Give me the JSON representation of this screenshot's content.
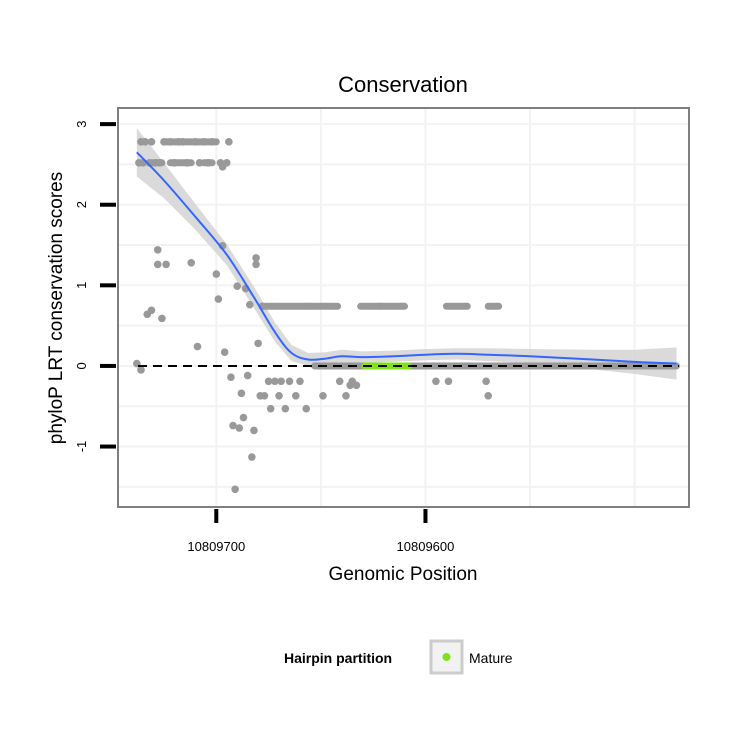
{
  "chart_data": {
    "type": "scatter",
    "title": "Conservation",
    "xlabel": "Genomic Position",
    "ylabel": "phyloP LRT conservation scores",
    "x_reversed": true,
    "xlim": [
      10809747,
      10809474
    ],
    "ylim": [
      -1.75,
      3.2
    ],
    "x_ticks": [
      10809700,
      10809600
    ],
    "x_tick_labels": [
      "10809700",
      "10809600"
    ],
    "y_ticks": [
      -1,
      0,
      1,
      2,
      3
    ],
    "y_tick_labels": [
      "-1",
      "0",
      "1",
      "2",
      "3"
    ],
    "reference_line": {
      "y": 0,
      "style": "dashed"
    },
    "colors": {
      "points": "#999999",
      "mature": "#7FE318",
      "smooth_line": "#3366FF",
      "ribbon": "#D3D3D3",
      "panel_border": "#7F7F7F",
      "grid": "#F2F2F2"
    },
    "series": [
      {
        "name": "phyloP scores",
        "points": [
          {
            "x": 10809738,
            "y": 0.03
          },
          {
            "x": 10809737,
            "y": 2.52
          },
          {
            "x": 10809736,
            "y": 2.78
          },
          {
            "x": 10809736,
            "y": -0.05
          },
          {
            "x": 10809735,
            "y": 2.52
          },
          {
            "x": 10809734,
            "y": 2.78
          },
          {
            "x": 10809733,
            "y": 0.64
          },
          {
            "x": 10809732,
            "y": 2.52
          },
          {
            "x": 10809731,
            "y": 2.78
          },
          {
            "x": 10809731,
            "y": 0.69
          },
          {
            "x": 10809729,
            "y": 2.52
          },
          {
            "x": 10809728,
            "y": 1.26
          },
          {
            "x": 10809728,
            "y": 1.44
          },
          {
            "x": 10809727,
            "y": 2.52
          },
          {
            "x": 10809726,
            "y": 0.59
          },
          {
            "x": 10809725,
            "y": 2.78
          },
          {
            "x": 10809724,
            "y": 1.26
          },
          {
            "x": 10809722,
            "y": 2.78
          },
          {
            "x": 10809720,
            "y": 2.52
          },
          {
            "x": 10809718,
            "y": 2.78
          },
          {
            "x": 10809716,
            "y": 2.78
          },
          {
            "x": 10809714,
            "y": 2.52
          },
          {
            "x": 10809712,
            "y": 1.28
          },
          {
            "x": 10809710,
            "y": 2.78
          },
          {
            "x": 10809709,
            "y": 0.24
          },
          {
            "x": 10809708,
            "y": 2.52
          },
          {
            "x": 10809706,
            "y": 2.78
          },
          {
            "x": 10809704,
            "y": 2.52
          },
          {
            "x": 10809702,
            "y": 2.78
          },
          {
            "x": 10809700,
            "y": 1.14
          },
          {
            "x": 10809699,
            "y": 0.83
          },
          {
            "x": 10809698,
            "y": 2.52
          },
          {
            "x": 10809697,
            "y": 2.47
          },
          {
            "x": 10809697,
            "y": 1.49
          },
          {
            "x": 10809696,
            "y": 0.17
          },
          {
            "x": 10809695,
            "y": 2.52
          },
          {
            "x": 10809694,
            "y": 2.78
          },
          {
            "x": 10809693,
            "y": -0.14
          },
          {
            "x": 10809692,
            "y": -0.74
          },
          {
            "x": 10809691,
            "y": -1.53
          },
          {
            "x": 10809690,
            "y": 0.99
          },
          {
            "x": 10809689,
            "y": -0.77
          },
          {
            "x": 10809688,
            "y": -0.34
          },
          {
            "x": 10809687,
            "y": -0.64
          },
          {
            "x": 10809686,
            "y": 0.96
          },
          {
            "x": 10809685,
            "y": -0.12
          },
          {
            "x": 10809684,
            "y": 0.76
          },
          {
            "x": 10809683,
            "y": -1.13
          },
          {
            "x": 10809682,
            "y": -0.8
          },
          {
            "x": 10809681,
            "y": 1.26
          },
          {
            "x": 10809681,
            "y": 1.34
          },
          {
            "x": 10809680,
            "y": 0.28
          },
          {
            "x": 10809679,
            "y": -0.37
          },
          {
            "x": 10809678,
            "y": 0.74
          },
          {
            "x": 10809677,
            "y": -0.37
          },
          {
            "x": 10809675,
            "y": -0.19
          },
          {
            "x": 10809674,
            "y": -0.53
          },
          {
            "x": 10809672,
            "y": -0.19
          },
          {
            "x": 10809670,
            "y": -0.37
          },
          {
            "x": 10809669,
            "y": -0.19
          },
          {
            "x": 10809667,
            "y": -0.53
          },
          {
            "x": 10809665,
            "y": -0.19
          },
          {
            "x": 10809662,
            "y": -0.37
          },
          {
            "x": 10809660,
            "y": -0.19
          },
          {
            "x": 10809657,
            "y": -0.53
          },
          {
            "x": 10809649,
            "y": -0.37
          },
          {
            "x": 10809641,
            "y": -0.19
          },
          {
            "x": 10809638,
            "y": -0.37
          },
          {
            "x": 10809636,
            "y": -0.24
          },
          {
            "x": 10809635,
            "y": -0.19
          },
          {
            "x": 10809633,
            "y": -0.24
          },
          {
            "x": 10809595,
            "y": -0.19
          },
          {
            "x": 10809589,
            "y": -0.19
          },
          {
            "x": 10809571,
            "y": -0.19
          },
          {
            "x": 10809570,
            "y": -0.37
          }
        ],
        "runs": [
          {
            "x_from": 10809731,
            "x_to": 10809726,
            "y": 2.52
          },
          {
            "x_from": 10809722,
            "x_to": 10809712,
            "y": 2.52
          },
          {
            "x_from": 10809725,
            "x_to": 10809700,
            "y": 2.78
          },
          {
            "x_from": 10809706,
            "x_to": 10809702,
            "y": 2.52
          },
          {
            "x_from": 10809678,
            "x_to": 10809657,
            "y": 0.74
          },
          {
            "x_from": 10809657,
            "x_to": 10809642,
            "y": 0.74
          },
          {
            "x_from": 10809631,
            "x_to": 10809622,
            "y": 0.74
          },
          {
            "x_from": 10809622,
            "x_to": 10809610,
            "y": 0.74
          },
          {
            "x_from": 10809590,
            "x_to": 10809580,
            "y": 0.74
          },
          {
            "x_from": 10809570,
            "x_to": 10809565,
            "y": 0.74
          },
          {
            "x_from": 10809653,
            "x_to": 10809480,
            "y": 0.0
          }
        ]
      },
      {
        "name": "Mature",
        "runs": [
          {
            "x_from": 10809629,
            "x_to": 10809608,
            "y": 0.0
          }
        ]
      }
    ],
    "smooth_fit": {
      "x": [
        10809738,
        10809725,
        10809710,
        10809695,
        10809682,
        10809672,
        10809664,
        10809656,
        10809648,
        10809640,
        10809630,
        10809615,
        10809600,
        10809585,
        10809570,
        10809550,
        10809520,
        10809500,
        10809480
      ],
      "y": [
        2.65,
        2.3,
        1.85,
        1.38,
        0.85,
        0.42,
        0.16,
        0.08,
        0.09,
        0.12,
        0.11,
        0.12,
        0.14,
        0.15,
        0.14,
        0.12,
        0.08,
        0.05,
        0.03
      ],
      "ci_halfwidth": [
        0.3,
        0.22,
        0.16,
        0.13,
        0.13,
        0.12,
        0.1,
        0.08,
        0.08,
        0.08,
        0.07,
        0.07,
        0.07,
        0.07,
        0.08,
        0.09,
        0.12,
        0.15,
        0.2
      ]
    },
    "legend": {
      "title": "Hairpin partition",
      "entries": [
        "Mature"
      ],
      "placement": "bottom"
    }
  }
}
